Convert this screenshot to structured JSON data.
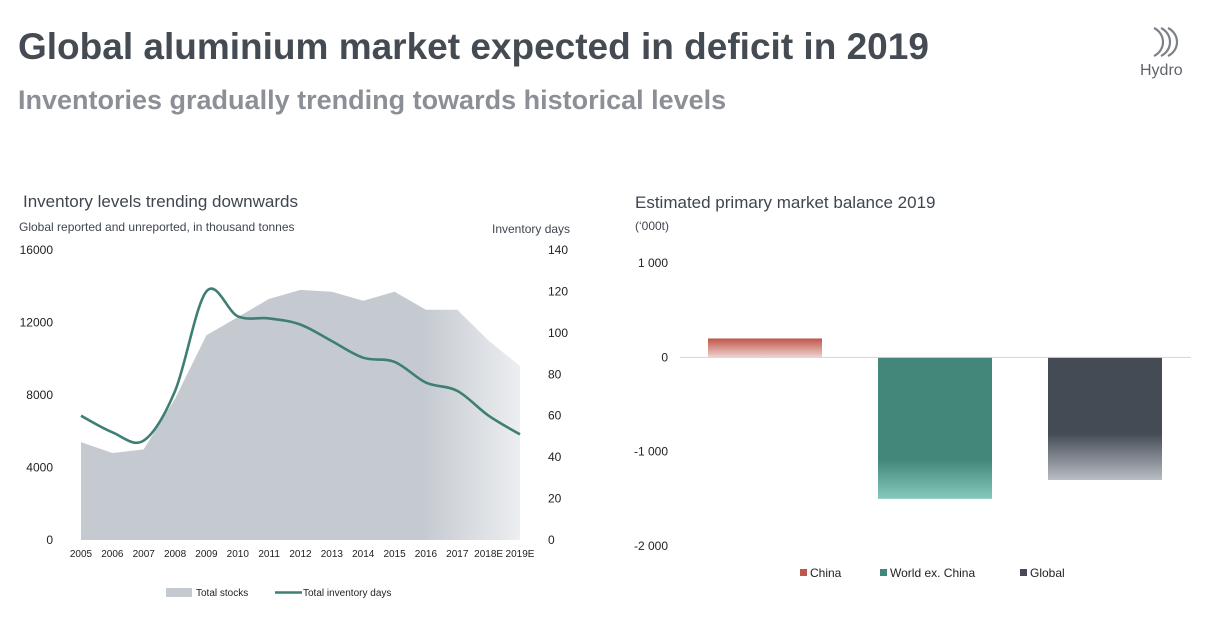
{
  "header": {
    "title": "Global aluminium market expected in deficit in 2019",
    "subtitle": "Inventories gradually trending towards historical levels",
    "logo_text": "Hydro",
    "logo_icon": "hydro-logo-icon"
  },
  "colors": {
    "stocks_area": "#c5cad1",
    "days_line": "#3f7f73",
    "china": "#c0554a",
    "world_ex_china": "#43867a",
    "global": "#444b55"
  },
  "chart_data": [
    {
      "type": "area",
      "title": "Inventory levels trending downwards",
      "subtitle": "Global reported and unreported, in thousand tonnes",
      "y2label": "Inventory days",
      "categories": [
        "2005",
        "2006",
        "2007",
        "2008",
        "2009",
        "2010",
        "2011",
        "2012",
        "2013",
        "2014",
        "2015",
        "2016",
        "2017",
        "2018E",
        "2019E"
      ],
      "ylim": [
        0,
        16000
      ],
      "y_ticks": [
        "0",
        "4000",
        "8000",
        "12000",
        "16000"
      ],
      "y2lim": [
        0,
        140
      ],
      "y2_ticks": [
        "0",
        "20",
        "40",
        "60",
        "80",
        "100",
        "120",
        "140"
      ],
      "series": [
        {
          "name": "Total stocks",
          "type": "area",
          "axis": "left",
          "values": [
            5400,
            4800,
            5000,
            7800,
            11300,
            12300,
            13300,
            13800,
            13700,
            13200,
            13700,
            12700,
            12700,
            11000,
            9600
          ]
        },
        {
          "name": "Total inventory days",
          "type": "line",
          "axis": "right",
          "values": [
            60,
            52,
            48,
            72,
            120,
            108,
            107,
            104,
            96,
            88,
            86,
            76,
            72,
            60,
            51
          ]
        }
      ],
      "legend": [
        "Total stocks",
        "Total inventory days"
      ],
      "legend_position": "bottom",
      "grid": false
    },
    {
      "type": "bar",
      "title": "Estimated primary market balance 2019",
      "ylabel": "(‘000t)",
      "categories": [
        "China",
        "World ex. China",
        "Global"
      ],
      "values": [
        200,
        -1500,
        -1300
      ],
      "ylim": [
        -2000,
        1000
      ],
      "y_ticks": [
        "-2 000",
        "-1 000",
        "0",
        "1 000"
      ],
      "legend": [
        "China",
        "World ex. China",
        "Global"
      ],
      "legend_position": "bottom",
      "grid": false
    }
  ]
}
